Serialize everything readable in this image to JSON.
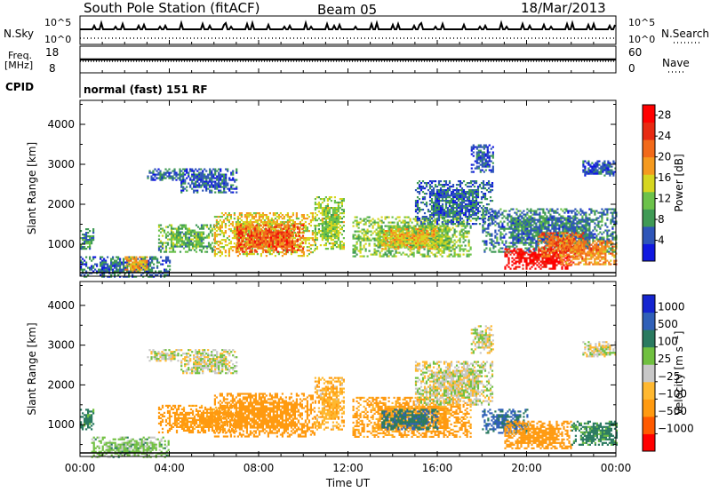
{
  "header": {
    "station": "South Pole Station (fitACF)",
    "beam": "Beam 05",
    "date": "18/Mar/2013"
  },
  "top_panels": {
    "nsky_label": "N.Sky",
    "nsearch_label": "N.Search",
    "nsky_ticks": [
      "10^5",
      "10^0"
    ],
    "nsearch_ticks": [
      "10^5",
      "10^0"
    ],
    "freq_label_line1": "Freq.",
    "freq_label_line2": "[MHz]",
    "freq_ticks": [
      "18",
      "8"
    ],
    "nave_label": "Nave",
    "nave_ticks": [
      "60",
      "0"
    ],
    "cpid_label": "CPID",
    "cpid_value": "normal (fast) 151 RF"
  },
  "colors": {
    "power_scale": [
      "#1018e0",
      "#2e55b8",
      "#3f9a55",
      "#6cc24a",
      "#d6d620",
      "#f59a1f",
      "#f26a1a",
      "#e82a12",
      "#ff0000"
    ],
    "velocity_scale": [
      "#ff0000",
      "#ff5a00",
      "#ff9a10",
      "#ffb830",
      "#c8c8c8",
      "#70c040",
      "#2a7a60",
      "#3060b8",
      "#1525d0"
    ]
  },
  "chart_data": [
    {
      "type": "heatmap",
      "name_shown": "Power [dB]",
      "ylabel": "Slant Range [km]",
      "xlabel": "Time UT",
      "x_ticks": [
        "00:00",
        "04:00",
        "08:00",
        "12:00",
        "16:00",
        "20:00",
        "00:00"
      ],
      "x_range_hours": [
        0,
        24
      ],
      "y_ticks": [
        1000,
        2000,
        3000,
        4000
      ],
      "ylim": [
        200,
        4600
      ],
      "colorbar_label": "Power [dB]",
      "colorbar_ticks": [
        "4",
        "8",
        "12",
        "16",
        "20",
        "24",
        "28"
      ],
      "colorbar_range": [
        0,
        30
      ],
      "regions": [
        {
          "t0": 0.0,
          "t1": 0.6,
          "r0": 900,
          "r1": 1400,
          "level": 8
        },
        {
          "t0": 0.0,
          "t1": 4.0,
          "r0": 200,
          "r1": 700,
          "level": 6
        },
        {
          "t0": 2.0,
          "t1": 3.0,
          "r0": 300,
          "r1": 700,
          "level": 18
        },
        {
          "t0": 3.0,
          "t1": 4.5,
          "r0": 2600,
          "r1": 2900,
          "level": 6
        },
        {
          "t0": 4.5,
          "t1": 7.0,
          "r0": 2300,
          "r1": 2900,
          "level": 5
        },
        {
          "t0": 3.5,
          "t1": 6.0,
          "r0": 800,
          "r1": 1500,
          "level": 10
        },
        {
          "t0": 6.0,
          "t1": 10.5,
          "r0": 700,
          "r1": 1800,
          "level": 16
        },
        {
          "t0": 7.0,
          "t1": 10.0,
          "r0": 800,
          "r1": 1500,
          "level": 23
        },
        {
          "t0": 10.5,
          "t1": 11.8,
          "r0": 900,
          "r1": 2200,
          "level": 13
        },
        {
          "t0": 12.2,
          "t1": 17.5,
          "r0": 700,
          "r1": 1700,
          "level": 12
        },
        {
          "t0": 13.5,
          "t1": 16.0,
          "r0": 900,
          "r1": 1400,
          "level": 17
        },
        {
          "t0": 15.0,
          "t1": 18.5,
          "r0": 1500,
          "r1": 2600,
          "level": 6
        },
        {
          "t0": 17.5,
          "t1": 18.5,
          "r0": 2800,
          "r1": 3500,
          "level": 5
        },
        {
          "t0": 18.0,
          "t1": 24.0,
          "r0": 800,
          "r1": 1900,
          "level": 7
        },
        {
          "t0": 19.0,
          "t1": 22.0,
          "r0": 400,
          "r1": 900,
          "level": 28
        },
        {
          "t0": 20.5,
          "t1": 22.5,
          "r0": 700,
          "r1": 1300,
          "level": 22
        },
        {
          "t0": 21.5,
          "t1": 24.0,
          "r0": 500,
          "r1": 1100,
          "level": 20
        },
        {
          "t0": 22.5,
          "t1": 24.0,
          "r0": 2700,
          "r1": 3100,
          "level": 5
        }
      ]
    },
    {
      "type": "heatmap",
      "name_shown": "Velocity [m s-1]",
      "ylabel": "Slant Range [km]",
      "xlabel": "Time UT",
      "x_ticks": [
        "00:00",
        "04:00",
        "08:00",
        "12:00",
        "16:00",
        "20:00",
        "00:00"
      ],
      "x_range_hours": [
        0,
        24
      ],
      "y_ticks": [
        1000,
        2000,
        3000,
        4000
      ],
      "ylim": [
        200,
        4600
      ],
      "colorbar_label": "Velocity [m s",
      "colorbar_label_sup": "-1",
      "colorbar_label_end": "]",
      "colorbar_ticks": [
        "1000",
        "500",
        "100",
        "25",
        "−25",
        "−100",
        "−500",
        "−1000"
      ],
      "regions": [
        {
          "t0": 0.0,
          "t1": 0.6,
          "r0": 900,
          "r1": 1400,
          "vel": 200
        },
        {
          "t0": 0.5,
          "t1": 4.0,
          "r0": 200,
          "r1": 700,
          "vel": 50
        },
        {
          "t0": 3.0,
          "t1": 4.5,
          "r0": 2600,
          "r1": 2900,
          "vel": 0
        },
        {
          "t0": 4.5,
          "t1": 7.0,
          "r0": 2300,
          "r1": 2900,
          "vel": 0
        },
        {
          "t0": 3.5,
          "t1": 7.0,
          "r0": 800,
          "r1": 1500,
          "vel": -200
        },
        {
          "t0": 6.0,
          "t1": 10.5,
          "r0": 700,
          "r1": 1800,
          "vel": -300
        },
        {
          "t0": 10.5,
          "t1": 11.8,
          "r0": 900,
          "r1": 2200,
          "vel": -80
        },
        {
          "t0": 12.2,
          "t1": 17.5,
          "r0": 700,
          "r1": 1700,
          "vel": -150
        },
        {
          "t0": 13.5,
          "t1": 16.0,
          "r0": 900,
          "r1": 1400,
          "vel": 400
        },
        {
          "t0": 15.0,
          "t1": 18.5,
          "r0": 1500,
          "r1": 2600,
          "vel": 0
        },
        {
          "t0": 17.5,
          "t1": 18.5,
          "r0": 2800,
          "r1": 3500,
          "vel": 0
        },
        {
          "t0": 18.0,
          "t1": 20.0,
          "r0": 800,
          "r1": 1400,
          "vel": 600
        },
        {
          "t0": 19.0,
          "t1": 22.0,
          "r0": 400,
          "r1": 1100,
          "vel": -250
        },
        {
          "t0": 22.0,
          "t1": 24.0,
          "r0": 500,
          "r1": 1100,
          "vel": 150
        },
        {
          "t0": 22.5,
          "t1": 24.0,
          "r0": 2700,
          "r1": 3100,
          "vel": 0
        }
      ]
    }
  ]
}
